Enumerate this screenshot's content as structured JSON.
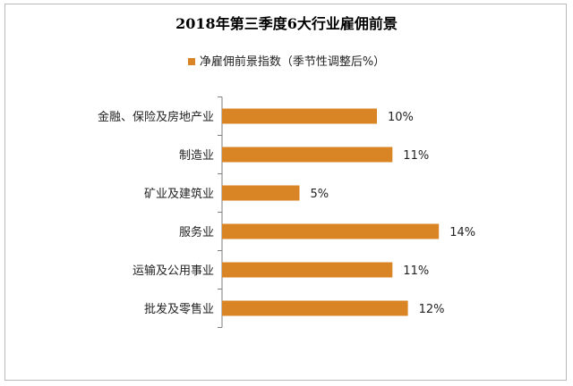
{
  "chart_data": {
    "type": "bar",
    "orientation": "horizontal",
    "title": "2018年第三季度6大行业雇佣前景",
    "legend": "净雇佣前景指数（季节性调整后%）",
    "categories": [
      "金融、保险及房地产业",
      "制造业",
      "矿业及建筑业",
      "服务业",
      "运输及公用事业",
      "批发及零售业"
    ],
    "values": [
      10,
      11,
      5,
      14,
      11,
      12
    ],
    "value_labels": [
      "10%",
      "11%",
      "5%",
      "14%",
      "11%",
      "12%"
    ],
    "unit": "%",
    "grid": false,
    "legend_position": "top",
    "color": "#D98425"
  }
}
